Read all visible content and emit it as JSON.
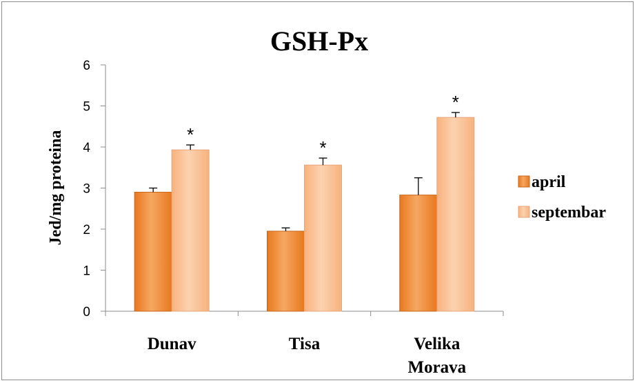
{
  "chart_data": {
    "type": "bar",
    "title": "GSH-Px",
    "xlabel": "",
    "ylabel": "Jed/mg proteina",
    "ylim": [
      0,
      6
    ],
    "yticks": [
      0,
      1,
      2,
      3,
      4,
      5,
      6
    ],
    "categories": [
      [
        "Dunav"
      ],
      [
        "Tisa"
      ],
      [
        "Velika",
        "Morava"
      ]
    ],
    "series": [
      {
        "name": "april",
        "values": [
          2.9,
          1.95,
          2.83
        ],
        "errors": [
          0.1,
          0.08,
          0.42
        ],
        "color": "#e8781e",
        "color_light": "#f5a862",
        "annotations": [
          "",
          "",
          ""
        ]
      },
      {
        "name": "septembar",
        "values": [
          3.93,
          3.56,
          4.72
        ],
        "errors": [
          0.12,
          0.17,
          0.12
        ],
        "color": "#f8b27e",
        "color_light": "#fcd2b0",
        "annotations": [
          "*",
          "*",
          "*"
        ]
      }
    ],
    "legend_position": "right",
    "grid": false
  }
}
